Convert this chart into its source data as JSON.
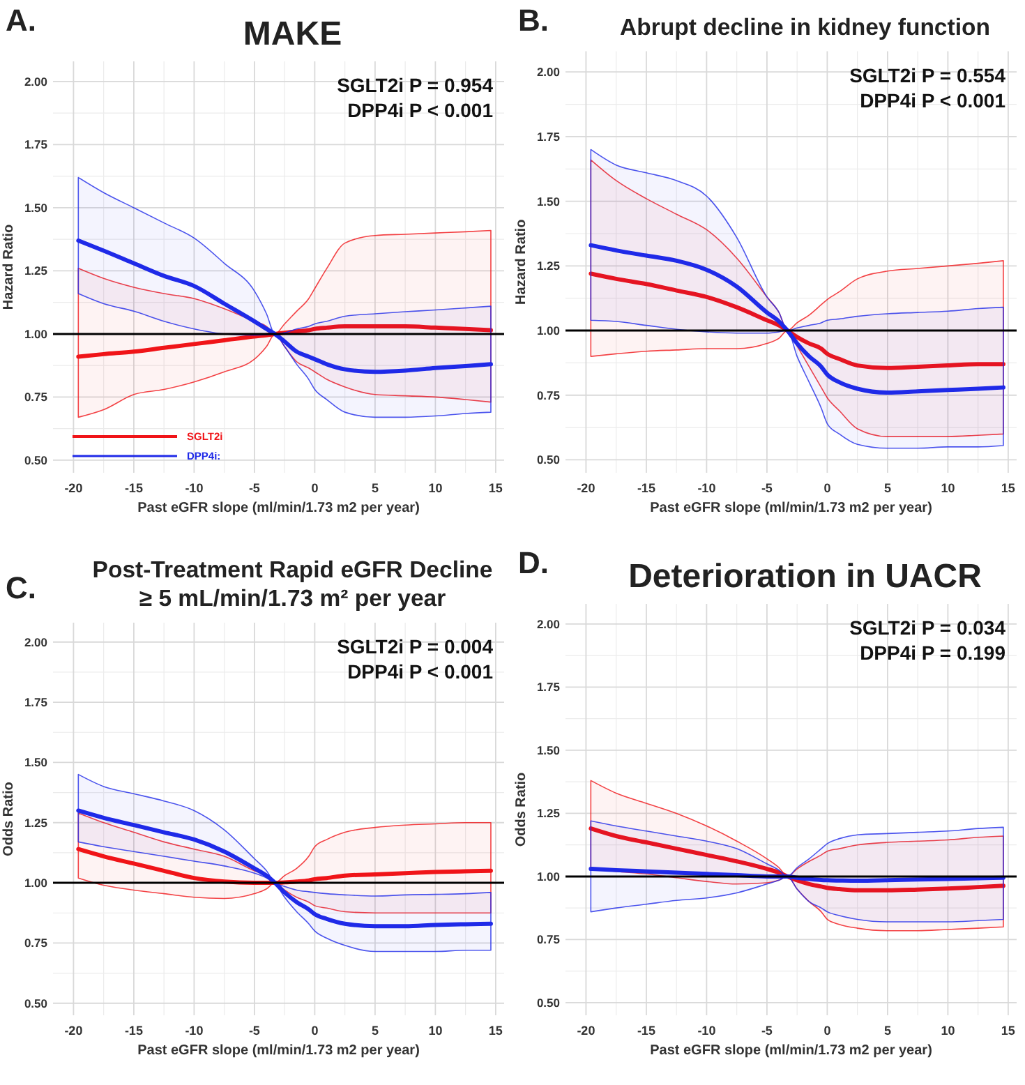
{
  "chart_data": [
    {
      "type": "line",
      "title": "MAKE",
      "xlabel": "Past eGFR slope (ml/min/1.73 m2 per year)",
      "ylabel": "Hazard Ratio",
      "annotations": [
        "A.",
        "SGLT2i P = 0.954",
        "DPP4i  P < 0.001"
      ],
      "xlim": [
        -21.7,
        15.7
      ],
      "ylim": [
        0.45,
        2.08
      ],
      "xticks": [
        -20,
        -15,
        -10,
        -5,
        0,
        5,
        10,
        15
      ],
      "yticks": [
        {
          "value": 0.5,
          "label": "0.50"
        },
        {
          "value": 0.75,
          "label": "0.75"
        },
        {
          "value": 1,
          "label": "1.00"
        },
        {
          "value": 1.25,
          "label": "1.25"
        },
        {
          "value": 1.5,
          "label": "1.50"
        },
        {
          "value": 1.75,
          "label": "1.75"
        },
        {
          "value": 2,
          "label": "2.00"
        }
      ],
      "grid": true,
      "legend": "bottom left",
      "ref_lines": [
        {
          "axis": "y",
          "value": 1,
          "color": "#000000"
        }
      ],
      "x": [
        -19.6,
        -17.5,
        -15,
        -12.5,
        -10,
        -7.5,
        -5,
        -4,
        -3.3,
        -2.5,
        -1.5,
        -0.5,
        0,
        1,
        2.5,
        5,
        7.5,
        10,
        12.5,
        14.6
      ],
      "series": [
        {
          "name": "SGLT2i",
          "color": "#f01418",
          "values": [
            0.91,
            0.92,
            0.93,
            0.945,
            0.96,
            0.975,
            0.99,
            0.995,
            1.0,
            1.005,
            1.01,
            1.015,
            1.02,
            1.025,
            1.03,
            1.03,
            1.03,
            1.025,
            1.02,
            1.015
          ],
          "lower": [
            0.67,
            0.7,
            0.76,
            0.78,
            0.81,
            0.85,
            0.9,
            0.95,
            1.0,
            0.95,
            0.89,
            0.865,
            0.85,
            0.82,
            0.79,
            0.76,
            0.755,
            0.75,
            0.74,
            0.73
          ],
          "upper": [
            1.26,
            1.22,
            1.185,
            1.16,
            1.14,
            1.1,
            1.05,
            1.03,
            1.0,
            1.04,
            1.09,
            1.14,
            1.18,
            1.26,
            1.36,
            1.39,
            1.395,
            1.4,
            1.405,
            1.41
          ]
        },
        {
          "name": "DPP4i:",
          "color": "#1f2ae8",
          "values": [
            1.37,
            1.33,
            1.28,
            1.23,
            1.19,
            1.12,
            1.05,
            1.02,
            1.0,
            0.97,
            0.93,
            0.91,
            0.9,
            0.88,
            0.86,
            0.85,
            0.855,
            0.865,
            0.873,
            0.88
          ],
          "lower": [
            1.16,
            1.12,
            1.09,
            1.05,
            1.02,
            1.0,
            0.995,
            0.997,
            1.0,
            0.95,
            0.88,
            0.82,
            0.78,
            0.74,
            0.69,
            0.67,
            0.67,
            0.675,
            0.685,
            0.69
          ],
          "upper": [
            1.62,
            1.56,
            1.5,
            1.44,
            1.38,
            1.28,
            1.17,
            1.08,
            1.0,
            1.005,
            1.02,
            1.03,
            1.04,
            1.05,
            1.07,
            1.08,
            1.088,
            1.095,
            1.103,
            1.11
          ]
        }
      ]
    },
    {
      "type": "line",
      "title": "Abrupt decline in kidney function",
      "xlabel": "Past eGFR slope (ml/min/1.73 m2 per year)",
      "ylabel": "Hazard Ratio",
      "annotations": [
        "B.",
        "SGLT2i P = 0.554",
        "DPP4i  P < 0.001"
      ],
      "xlim": [
        -21.7,
        15.7
      ],
      "ylim": [
        0.45,
        2.08
      ],
      "xticks": [
        -20,
        -15,
        -10,
        -5,
        0,
        5,
        10,
        15
      ],
      "yticks": [
        {
          "value": 0.5,
          "label": "0.50"
        },
        {
          "value": 0.75,
          "label": "0.75"
        },
        {
          "value": 1,
          "label": "1.00"
        },
        {
          "value": 1.25,
          "label": "1.25"
        },
        {
          "value": 1.5,
          "label": "1.50"
        },
        {
          "value": 1.75,
          "label": "1.75"
        },
        {
          "value": 2,
          "label": "2.00"
        }
      ],
      "grid": true,
      "ref_lines": [
        {
          "axis": "y",
          "value": 1,
          "color": "#000000"
        }
      ],
      "x": [
        -19.6,
        -17.5,
        -15,
        -12.5,
        -10,
        -7.5,
        -5,
        -4,
        -3.3,
        -2.5,
        -1.5,
        -0.5,
        0,
        1,
        2.5,
        5,
        7.5,
        10,
        12.5,
        14.6
      ],
      "series": [
        {
          "color": "#f01418",
          "values": [
            1.22,
            1.2,
            1.18,
            1.155,
            1.13,
            1.09,
            1.04,
            1.02,
            1.0,
            0.975,
            0.95,
            0.93,
            0.91,
            0.89,
            0.865,
            0.855,
            0.86,
            0.865,
            0.87,
            0.87
          ],
          "lower": [
            0.9,
            0.91,
            0.92,
            0.925,
            0.93,
            0.93,
            0.95,
            0.97,
            1.0,
            0.94,
            0.86,
            0.78,
            0.74,
            0.69,
            0.62,
            0.59,
            0.59,
            0.59,
            0.595,
            0.6
          ],
          "upper": [
            1.66,
            1.58,
            1.51,
            1.45,
            1.39,
            1.28,
            1.13,
            1.07,
            1.0,
            1.03,
            1.06,
            1.1,
            1.12,
            1.15,
            1.2,
            1.23,
            1.24,
            1.25,
            1.26,
            1.27
          ]
        },
        {
          "color": "#1f2ae8",
          "values": [
            1.33,
            1.31,
            1.29,
            1.27,
            1.235,
            1.17,
            1.07,
            1.035,
            1.0,
            0.95,
            0.9,
            0.86,
            0.83,
            0.8,
            0.775,
            0.76,
            0.765,
            0.77,
            0.775,
            0.78
          ],
          "lower": [
            1.04,
            1.035,
            1.02,
            1.005,
            0.995,
            0.99,
            0.99,
            0.995,
            1.0,
            0.9,
            0.8,
            0.7,
            0.64,
            0.6,
            0.56,
            0.545,
            0.545,
            0.55,
            0.55,
            0.555
          ],
          "upper": [
            1.7,
            1.64,
            1.61,
            1.58,
            1.52,
            1.36,
            1.13,
            1.07,
            1.0,
            1.01,
            1.02,
            1.03,
            1.04,
            1.045,
            1.055,
            1.065,
            1.07,
            1.075,
            1.085,
            1.09
          ]
        }
      ]
    },
    {
      "type": "line",
      "title": "Post-Treatment Rapid eGFR Decline\n≥ 5 mL/min/1.73 m² per year",
      "xlabel": "Past eGFR slope (ml/min/1.73 m2 per year)",
      "ylabel": "Odds Ratio",
      "annotations": [
        "C.",
        "SGLT2i P = 0.004",
        "DPP4i  P < 0.001"
      ],
      "xlim": [
        -21.7,
        15.7
      ],
      "ylim": [
        0.45,
        2.08
      ],
      "xticks": [
        -20,
        -15,
        -10,
        -5,
        0,
        5,
        10,
        15
      ],
      "yticks": [
        {
          "value": 0.5,
          "label": "0.50"
        },
        {
          "value": 0.75,
          "label": "0.75"
        },
        {
          "value": 1,
          "label": "1.00"
        },
        {
          "value": 1.25,
          "label": "1.25"
        },
        {
          "value": 1.5,
          "label": "1.50"
        },
        {
          "value": 1.75,
          "label": "1.75"
        },
        {
          "value": 2,
          "label": "2.00"
        }
      ],
      "grid": true,
      "ref_lines": [
        {
          "axis": "y",
          "value": 1,
          "color": "#000000"
        }
      ],
      "x": [
        -19.6,
        -17.5,
        -15,
        -12.5,
        -10,
        -7.5,
        -5,
        -4,
        -3.3,
        -2.5,
        -1.5,
        -0.5,
        0,
        1,
        2.5,
        5,
        7.5,
        10,
        12.5,
        14.6
      ],
      "series": [
        {
          "color": "#f01418",
          "values": [
            1.14,
            1.11,
            1.08,
            1.05,
            1.02,
            1.005,
            1.0,
            1.0,
            1.0,
            1.002,
            1.005,
            1.01,
            1.015,
            1.02,
            1.03,
            1.035,
            1.04,
            1.045,
            1.048,
            1.05
          ],
          "lower": [
            1.02,
            0.99,
            0.97,
            0.955,
            0.94,
            0.935,
            0.955,
            0.975,
            1.0,
            0.97,
            0.94,
            0.92,
            0.905,
            0.895,
            0.88,
            0.875,
            0.875,
            0.875,
            0.875,
            0.875
          ],
          "upper": [
            1.29,
            1.25,
            1.21,
            1.17,
            1.14,
            1.11,
            1.05,
            1.03,
            1.0,
            1.03,
            1.06,
            1.11,
            1.15,
            1.18,
            1.21,
            1.23,
            1.24,
            1.245,
            1.25,
            1.25
          ]
        },
        {
          "color": "#1f2ae8",
          "values": [
            1.3,
            1.27,
            1.24,
            1.21,
            1.18,
            1.13,
            1.06,
            1.03,
            1.0,
            0.96,
            0.92,
            0.89,
            0.87,
            0.85,
            0.83,
            0.82,
            0.82,
            0.825,
            0.828,
            0.83
          ],
          "lower": [
            1.17,
            1.15,
            1.13,
            1.11,
            1.09,
            1.07,
            1.04,
            1.02,
            1.0,
            0.94,
            0.88,
            0.83,
            0.8,
            0.77,
            0.74,
            0.715,
            0.715,
            0.715,
            0.72,
            0.72
          ],
          "upper": [
            1.45,
            1.4,
            1.37,
            1.34,
            1.3,
            1.22,
            1.1,
            1.05,
            1.0,
            0.985,
            0.97,
            0.963,
            0.96,
            0.955,
            0.95,
            0.945,
            0.95,
            0.952,
            0.955,
            0.96
          ]
        }
      ]
    },
    {
      "type": "line",
      "title": "Deterioration in UACR",
      "xlabel": "Past eGFR slope (ml/min/1.73 m2 per year)",
      "ylabel": "Odds Ratio",
      "annotations": [
        "D.",
        "SGLT2i P = 0.034",
        "DPP4i  P = 0.199"
      ],
      "xlim": [
        -21.7,
        15.7
      ],
      "ylim": [
        0.45,
        2.08
      ],
      "xticks": [
        -20,
        -15,
        -10,
        -5,
        0,
        5,
        10,
        15
      ],
      "yticks": [
        {
          "value": 0.5,
          "label": "0.50"
        },
        {
          "value": 0.75,
          "label": "0.75"
        },
        {
          "value": 1,
          "label": "1.00"
        },
        {
          "value": 1.25,
          "label": "1.25"
        },
        {
          "value": 1.5,
          "label": "1.50"
        },
        {
          "value": 1.75,
          "label": "1.75"
        },
        {
          "value": 2,
          "label": "2.00"
        }
      ],
      "grid": true,
      "ref_lines": [
        {
          "axis": "y",
          "value": 1,
          "color": "#000000"
        }
      ],
      "x": [
        -19.6,
        -17.5,
        -15,
        -12.5,
        -10,
        -7.5,
        -5,
        -4,
        -3.3,
        -2.5,
        -1.5,
        -0.5,
        0,
        1,
        2.5,
        5,
        7.5,
        10,
        12.5,
        14.6
      ],
      "series": [
        {
          "color": "#f01418",
          "values": [
            1.19,
            1.16,
            1.135,
            1.11,
            1.085,
            1.06,
            1.03,
            1.015,
            1.0,
            0.985,
            0.97,
            0.96,
            0.955,
            0.95,
            0.945,
            0.945,
            0.948,
            0.952,
            0.958,
            0.963
          ],
          "lower": [
            1.03,
            1.02,
            1.01,
            0.995,
            0.98,
            0.97,
            0.975,
            0.985,
            1.0,
            0.95,
            0.9,
            0.86,
            0.83,
            0.81,
            0.795,
            0.785,
            0.785,
            0.79,
            0.795,
            0.8
          ],
          "upper": [
            1.38,
            1.33,
            1.29,
            1.25,
            1.2,
            1.14,
            1.07,
            1.035,
            1.0,
            1.03,
            1.06,
            1.085,
            1.1,
            1.11,
            1.125,
            1.135,
            1.14,
            1.145,
            1.155,
            1.16
          ]
        },
        {
          "color": "#1f2ae8",
          "values": [
            1.03,
            1.025,
            1.02,
            1.015,
            1.01,
            1.005,
            1.0,
            1.0,
            1.0,
            0.995,
            0.99,
            0.986,
            0.985,
            0.984,
            0.983,
            0.985,
            0.988,
            0.99,
            0.993,
            0.995
          ],
          "lower": [
            0.86,
            0.875,
            0.89,
            0.905,
            0.915,
            0.935,
            0.97,
            0.985,
            1.0,
            0.95,
            0.9,
            0.875,
            0.86,
            0.845,
            0.83,
            0.82,
            0.82,
            0.82,
            0.825,
            0.83
          ],
          "upper": [
            1.22,
            1.2,
            1.18,
            1.16,
            1.14,
            1.11,
            1.05,
            1.025,
            1.0,
            1.035,
            1.07,
            1.11,
            1.13,
            1.15,
            1.165,
            1.17,
            1.175,
            1.18,
            1.19,
            1.195
          ]
        }
      ]
    }
  ]
}
